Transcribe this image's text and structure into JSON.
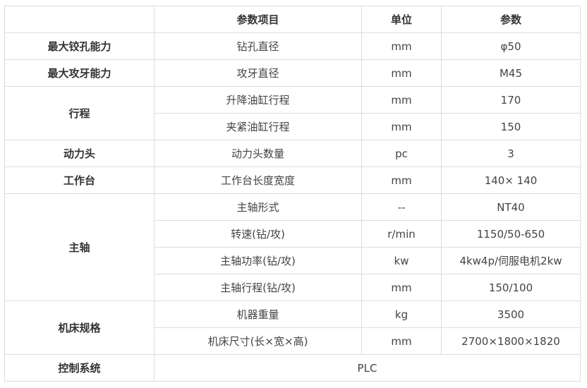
{
  "header": [
    "",
    "参数项目",
    "单位",
    "参数"
  ],
  "groups": [
    {
      "name": "最大铰孔能力",
      "rows": [
        {
          "item": "钻孔直径",
          "unit": "mm",
          "value": "φ50"
        }
      ]
    },
    {
      "name": "最大攻牙能力",
      "rows": [
        {
          "item": "攻牙直径",
          "unit": "mm",
          "value": "M45"
        }
      ]
    },
    {
      "name": "行程",
      "rows": [
        {
          "item": "升降油缸行程",
          "unit": "mm",
          "value": "170"
        },
        {
          "item": "夹紧油缸行程",
          "unit": "mm",
          "value": "150"
        }
      ]
    },
    {
      "name": "动力头",
      "rows": [
        {
          "item": "动力头数量",
          "unit": "pc",
          "value": "3"
        }
      ]
    },
    {
      "name": "工作台",
      "rows": [
        {
          "item": "工作台长度宽度",
          "unit": "mm",
          "value": "140× 140"
        }
      ]
    },
    {
      "name": "主轴",
      "rows": [
        {
          "item": "主轴形式",
          "unit": "--",
          "value": "NT40"
        },
        {
          "item": "转速(钻/攻)",
          "unit": "r/min",
          "value": "1150/50-650"
        },
        {
          "item": "主轴功率(钻/攻)",
          "unit": "kw",
          "value": "4kw4p/伺服电机2kw"
        },
        {
          "item": "主轴行程(钻/攻)",
          "unit": "mm",
          "value": "150/100"
        }
      ]
    },
    {
      "name": "机床规格",
      "rows": [
        {
          "item": "机器重量",
          "unit": "kg",
          "value": "3500"
        },
        {
          "item": "机床尺寸(长×宽×高)",
          "unit": "mm",
          "value": "2700×1800×1820"
        }
      ]
    }
  ],
  "control": {
    "name": "控制系统",
    "value": "PLC"
  }
}
